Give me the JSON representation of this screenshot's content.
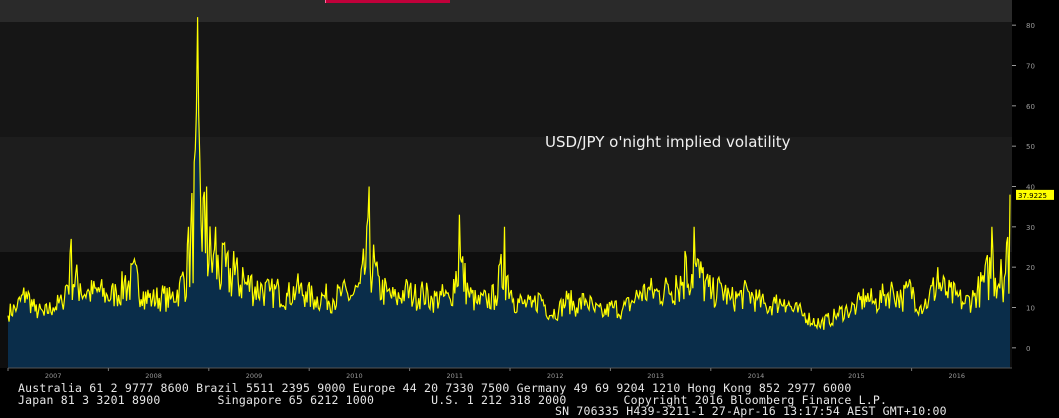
{
  "chart_data": {
    "type": "area",
    "title": "USD/JPY o'night implied volatility",
    "years": [
      "2007",
      "2008",
      "2009",
      "2010",
      "2011",
      "2012",
      "2013",
      "2014",
      "2015",
      "2016"
    ],
    "yticks": [
      0,
      10,
      20,
      30,
      40,
      50,
      60,
      70,
      80
    ],
    "ylim": [
      -5,
      85
    ],
    "last_value_label": "37.9225",
    "grid": false,
    "colors": {
      "line": "#ffff00",
      "fill": "#0a2d4a",
      "tick": "#9a9a9a",
      "label_bg": "#ffff00"
    },
    "series": [
      {
        "x": [
          "2007-01",
          "2007-02",
          "2007-03",
          "2007-04",
          "2007-05",
          "2007-06",
          "2007-07",
          "2007-08",
          "2007-09",
          "2007-10",
          "2007-11",
          "2007-12",
          "2008-01",
          "2008-02",
          "2008-03",
          "2008-04",
          "2008-05",
          "2008-06",
          "2008-07",
          "2008-08",
          "2008-09",
          "2008-10",
          "2008-11",
          "2008-12",
          "2009-01",
          "2009-02",
          "2009-03",
          "2009-04",
          "2009-05",
          "2009-06",
          "2009-07",
          "2009-08",
          "2009-09",
          "2009-10",
          "2009-11",
          "2009-12",
          "2010-01",
          "2010-02",
          "2010-03",
          "2010-04",
          "2010-05",
          "2010-06",
          "2010-07",
          "2010-08",
          "2010-09",
          "2010-10",
          "2010-11",
          "2010-12",
          "2011-01",
          "2011-02",
          "2011-03",
          "2011-04",
          "2011-05",
          "2011-06",
          "2011-07",
          "2011-08",
          "2011-09",
          "2011-10",
          "2011-11",
          "2011-12",
          "2012-01",
          "2012-02",
          "2012-03",
          "2012-04",
          "2012-05",
          "2012-06",
          "2012-07",
          "2012-08",
          "2012-09",
          "2012-10",
          "2012-11",
          "2012-12",
          "2013-01",
          "2013-02",
          "2013-03",
          "2013-04",
          "2013-05",
          "2013-06",
          "2013-07",
          "2013-08",
          "2013-09",
          "2013-10",
          "2013-11",
          "2013-12",
          "2014-01",
          "2014-02",
          "2014-03",
          "2014-04",
          "2014-05",
          "2014-06",
          "2014-07",
          "2014-08",
          "2014-09",
          "2014-10",
          "2014-11",
          "2014-12",
          "2015-01",
          "2015-02",
          "2015-03",
          "2015-04",
          "2015-05",
          "2015-06",
          "2015-07",
          "2015-08",
          "2015-09",
          "2015-10",
          "2015-11",
          "2015-12",
          "2016-01",
          "2016-02",
          "2016-03",
          "2016-04"
        ],
        "values": [
          8,
          10,
          14,
          9,
          8,
          10,
          11,
          27,
          16,
          14,
          15,
          13,
          14,
          18,
          22,
          14,
          12,
          13,
          12,
          16,
          30,
          82,
          40,
          30,
          26,
          24,
          20,
          18,
          16,
          14,
          15,
          13,
          16,
          14,
          12,
          13,
          12,
          14,
          13,
          16,
          40,
          18,
          14,
          12,
          15,
          13,
          14,
          12,
          13,
          12,
          33,
          14,
          11,
          12,
          13,
          30,
          12,
          11,
          10,
          13,
          8,
          9,
          12,
          10,
          12,
          9,
          8,
          10,
          9,
          11,
          14,
          15,
          14,
          16,
          18,
          24,
          30,
          20,
          14,
          16,
          12,
          13,
          14,
          12,
          10,
          11,
          12,
          9,
          8,
          6,
          5,
          6,
          8,
          9,
          10,
          13,
          11,
          13,
          15,
          12,
          16,
          10,
          12,
          20,
          14,
          13,
          11,
          13,
          18,
          30,
          22,
          38
        ]
      }
    ]
  },
  "footer": {
    "line1": "Australia 61 2 9777 8600 Brazil 5511 2395 9000 Europe 44 20 7330 7500 Germany 49 69 9204 1210 Hong Kong 852 2977 6000",
    "line2": "Japan 81 3 3201 8900        Singapore 65 6212 1000        U.S. 1 212 318 2000        Copyright 2016 Bloomberg Finance L.P.",
    "line3": "SN 706335 H439-3211-1 27-Apr-16 13:17:54 AEST GMT+10:00"
  }
}
